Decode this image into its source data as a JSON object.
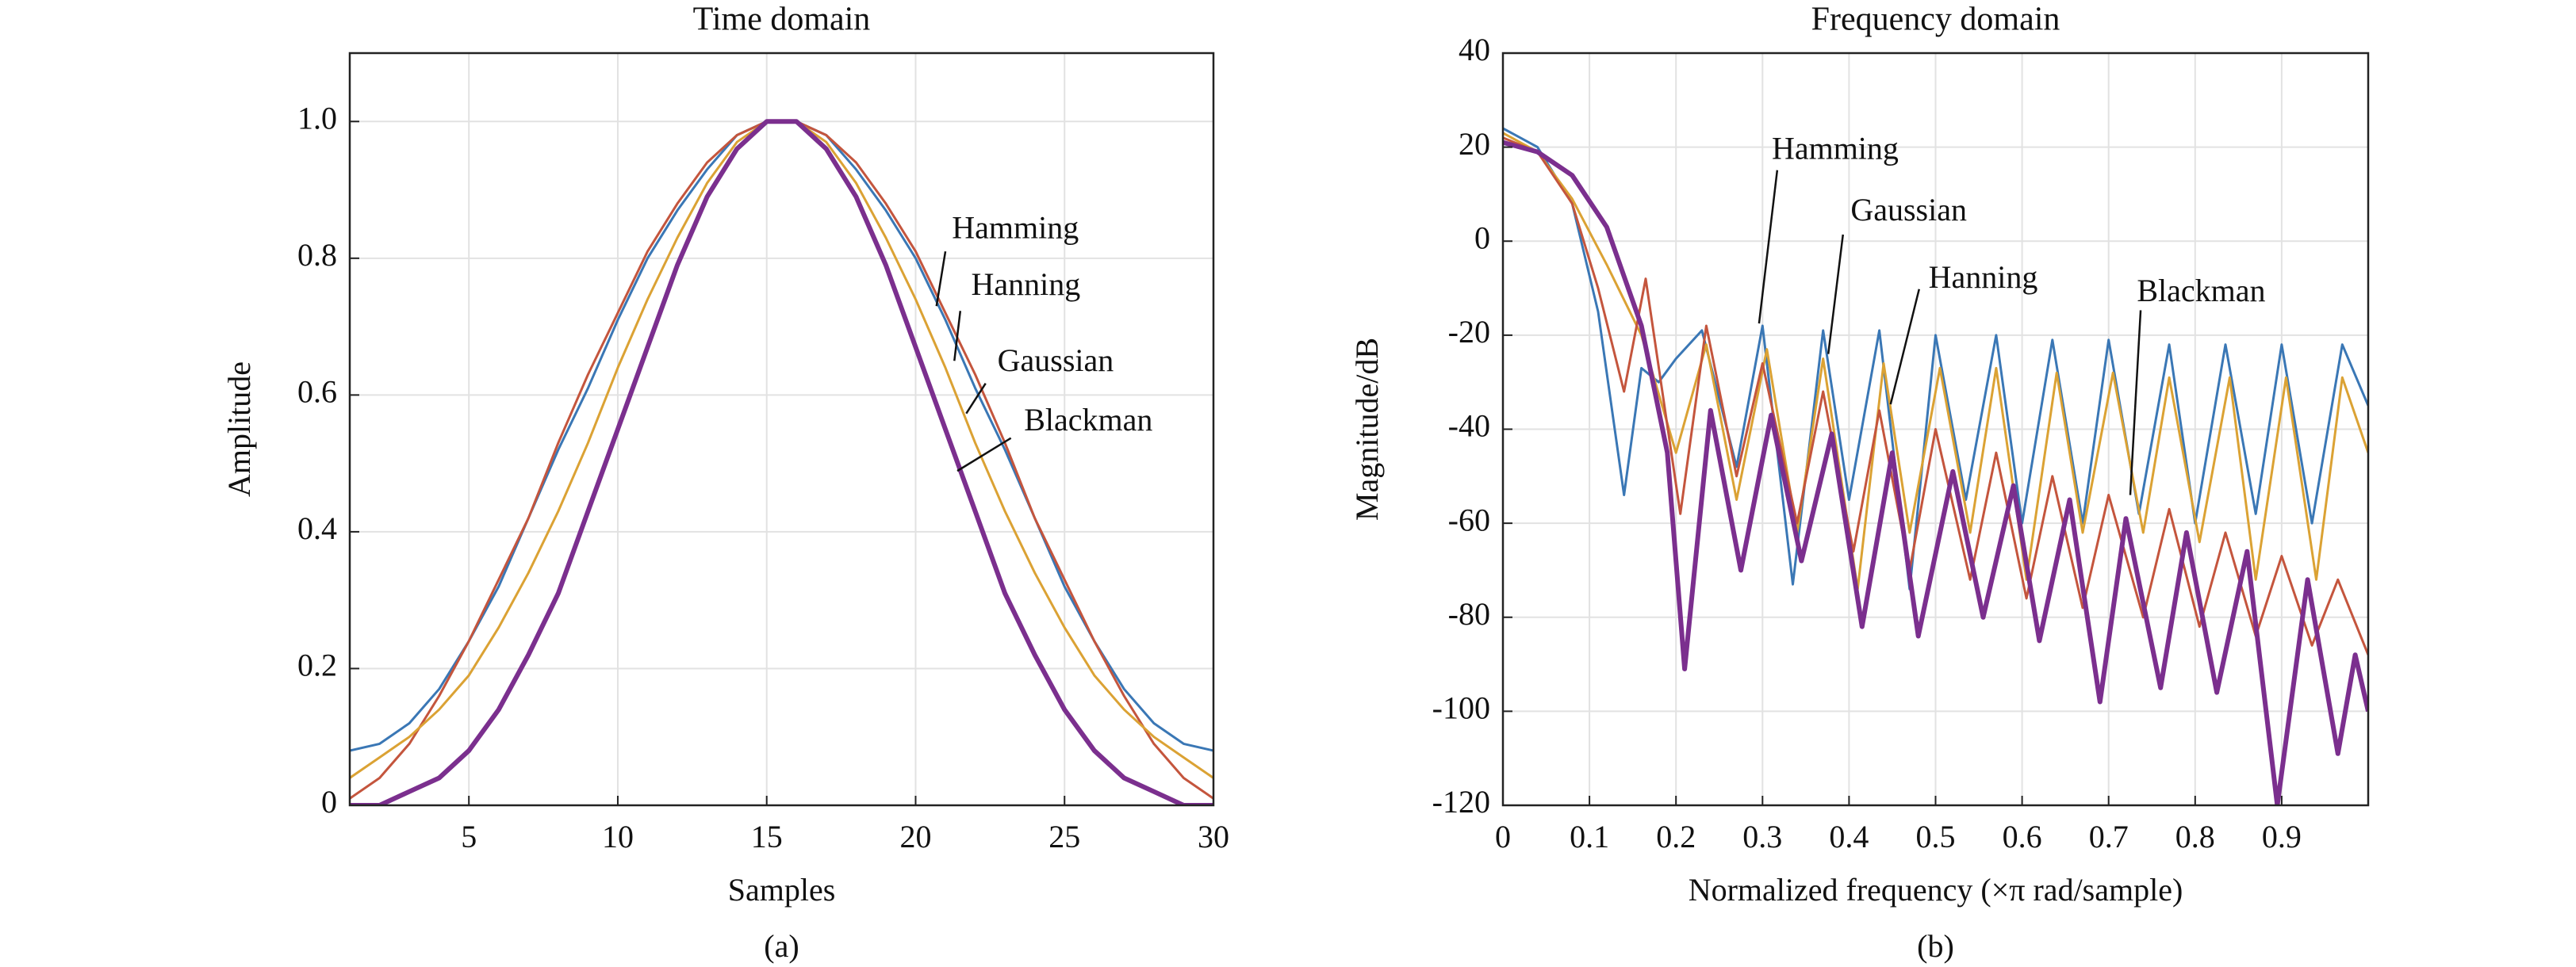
{
  "chart_data": [
    {
      "type": "line",
      "title": "Time domain",
      "xlabel": "Samples",
      "ylabel": "Amplitude",
      "caption": "(a)",
      "x": [
        1,
        2,
        3,
        4,
        5,
        6,
        7,
        8,
        9,
        10,
        11,
        12,
        13,
        14,
        15,
        16,
        17,
        18,
        19,
        20,
        21,
        22,
        23,
        24,
        25,
        26,
        27,
        28,
        29,
        30
      ],
      "xlim": [
        1,
        30
      ],
      "xticks": [
        5,
        10,
        15,
        20,
        25,
        30
      ],
      "ylim": [
        0,
        1.1
      ],
      "yticks": [
        0,
        0.2,
        0.4,
        0.6,
        0.8,
        {
          "value": 1,
          "label": "1.0"
        }
      ],
      "grid": true,
      "series": [
        {
          "name": "Hamming",
          "color": "#3a77b5",
          "values": [
            0.08,
            0.09,
            0.12,
            0.17,
            0.24,
            0.32,
            0.42,
            0.52,
            0.61,
            0.71,
            0.8,
            0.87,
            0.93,
            0.98,
            1.0,
            1.0,
            0.98,
            0.93,
            0.87,
            0.8,
            0.71,
            0.61,
            0.52,
            0.42,
            0.32,
            0.24,
            0.17,
            0.12,
            0.09,
            0.08
          ]
        },
        {
          "name": "Hanning",
          "color": "#c4553d",
          "values": [
            0.01,
            0.04,
            0.09,
            0.16,
            0.24,
            0.33,
            0.42,
            0.53,
            0.63,
            0.72,
            0.81,
            0.88,
            0.94,
            0.98,
            1.0,
            1.0,
            0.98,
            0.94,
            0.88,
            0.81,
            0.72,
            0.63,
            0.53,
            0.42,
            0.33,
            0.24,
            0.16,
            0.09,
            0.04,
            0.01
          ]
        },
        {
          "name": "Gaussian",
          "color": "#dba234",
          "values": [
            0.04,
            0.07,
            0.1,
            0.14,
            0.19,
            0.26,
            0.34,
            0.43,
            0.53,
            0.64,
            0.74,
            0.83,
            0.91,
            0.97,
            1.0,
            1.0,
            0.97,
            0.91,
            0.83,
            0.74,
            0.64,
            0.53,
            0.43,
            0.34,
            0.26,
            0.19,
            0.14,
            0.1,
            0.07,
            0.04
          ]
        },
        {
          "name": "Blackman",
          "color": "#7b2f8e",
          "values": [
            0,
            0,
            0.02,
            0.04,
            0.08,
            0.14,
            0.22,
            0.31,
            0.43,
            0.55,
            0.67,
            0.79,
            0.89,
            0.96,
            1.0,
            1.0,
            0.96,
            0.89,
            0.79,
            0.67,
            0.55,
            0.43,
            0.31,
            0.22,
            0.14,
            0.08,
            0.04,
            0.02,
            0,
            0
          ]
        }
      ]
    },
    {
      "type": "line",
      "title": "Frequency domain",
      "xlabel": "Normalized frequency (×π rad/sample)",
      "ylabel": "Magnitude/dB",
      "caption": "(b)",
      "xlim": [
        0,
        1
      ],
      "xticks": [
        0,
        0.1,
        0.2,
        0.3,
        0.4,
        0.5,
        0.6,
        0.7,
        0.8,
        0.9
      ],
      "ylim": [
        -120,
        40
      ],
      "yticks": [
        -120,
        -100,
        -80,
        -60,
        -40,
        -20,
        0,
        20,
        40
      ],
      "grid": true,
      "series": [
        {
          "name": "Hamming",
          "color": "#3a77b5",
          "x": [
            0,
            0.04,
            0.08,
            0.11,
            0.14,
            0.16,
            0.18,
            0.2,
            0.23,
            0.27,
            0.3,
            0.335,
            0.37,
            0.4,
            0.435,
            0.47,
            0.5,
            0.535,
            0.57,
            0.6,
            0.635,
            0.67,
            0.7,
            0.735,
            0.77,
            0.8,
            0.835,
            0.87,
            0.9,
            0.935,
            0.97,
            1.0
          ],
          "values": [
            24,
            20,
            8,
            -15,
            -54,
            -27,
            -30,
            -25,
            -19,
            -48,
            -18,
            -73,
            -19,
            -55,
            -19,
            -74,
            -20,
            -55,
            -20,
            -60,
            -21,
            -60,
            -21,
            -58,
            -22,
            -60,
            -22,
            -58,
            -22,
            -60,
            -22,
            -35
          ]
        },
        {
          "name": "Gaussian",
          "color": "#dba234",
          "x": [
            0,
            0.04,
            0.08,
            0.12,
            0.16,
            0.2,
            0.235,
            0.27,
            0.305,
            0.34,
            0.37,
            0.41,
            0.44,
            0.47,
            0.505,
            0.54,
            0.57,
            0.605,
            0.64,
            0.67,
            0.705,
            0.74,
            0.77,
            0.805,
            0.84,
            0.87,
            0.905,
            0.94,
            0.97,
            1.0
          ],
          "values": [
            23,
            19,
            9,
            -5,
            -20,
            -45,
            -22,
            -55,
            -23,
            -62,
            -25,
            -74,
            -26,
            -62,
            -27,
            -62,
            -27,
            -72,
            -28,
            -62,
            -28,
            -62,
            -29,
            -64,
            -29,
            -72,
            -29,
            -72,
            -29,
            -45
          ]
        },
        {
          "name": "Hanning",
          "color": "#c4553d",
          "x": [
            0,
            0.04,
            0.08,
            0.11,
            0.14,
            0.165,
            0.205,
            0.235,
            0.27,
            0.3,
            0.34,
            0.37,
            0.405,
            0.435,
            0.47,
            0.5,
            0.54,
            0.57,
            0.605,
            0.635,
            0.67,
            0.7,
            0.74,
            0.77,
            0.805,
            0.835,
            0.87,
            0.9,
            0.935,
            0.965,
            1.0
          ],
          "values": [
            22,
            19,
            8,
            -10,
            -32,
            -8,
            -58,
            -18,
            -50,
            -26,
            -60,
            -32,
            -66,
            -36,
            -70,
            -40,
            -72,
            -45,
            -76,
            -50,
            -78,
            -54,
            -80,
            -57,
            -82,
            -62,
            -84,
            -67,
            -86,
            -72,
            -88
          ]
        },
        {
          "name": "Blackman",
          "color": "#7b2f8e",
          "x": [
            0,
            0.04,
            0.08,
            0.12,
            0.16,
            0.19,
            0.21,
            0.24,
            0.275,
            0.31,
            0.345,
            0.38,
            0.415,
            0.45,
            0.48,
            0.52,
            0.555,
            0.59,
            0.62,
            0.655,
            0.69,
            0.72,
            0.76,
            0.79,
            0.825,
            0.86,
            0.895,
            0.93,
            0.965,
            0.985,
            1.0
          ],
          "values": [
            21,
            19,
            14,
            3,
            -18,
            -45,
            -91,
            -36,
            -70,
            -37,
            -68,
            -41,
            -82,
            -45,
            -84,
            -49,
            -80,
            -52,
            -85,
            -55,
            -98,
            -59,
            -95,
            -62,
            -96,
            -66,
            -120,
            -72,
            -109,
            -88,
            -100
          ]
        }
      ]
    }
  ]
}
